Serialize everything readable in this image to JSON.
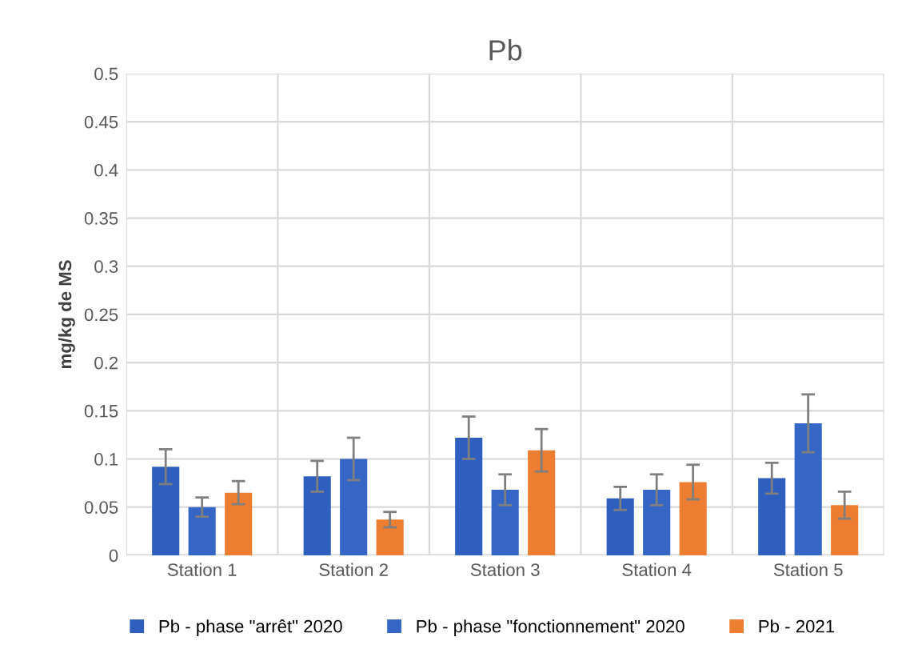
{
  "chart_data": {
    "type": "bar",
    "title": "Pb",
    "ylabel": "mg/kg de MS",
    "categories": [
      "Station 1",
      "Station 2",
      "Station 3",
      "Station 4",
      "Station 5"
    ],
    "series": [
      {
        "name": "Pb - phase \"arrêt\" 2020",
        "color": "#2e5fbf",
        "values": [
          0.092,
          0.082,
          0.122,
          0.059,
          0.08
        ],
        "errors": [
          0.018,
          0.016,
          0.022,
          0.012,
          0.016
        ]
      },
      {
        "name": "Pb - phase \"fonctionnement\" 2020",
        "color": "#3566c6",
        "values": [
          0.05,
          0.1,
          0.068,
          0.068,
          0.137
        ],
        "errors": [
          0.01,
          0.022,
          0.016,
          0.016,
          0.03
        ]
      },
      {
        "name": "Pb - 2021",
        "color": "#ed7d31",
        "values": [
          0.065,
          0.037,
          0.109,
          0.076,
          0.052
        ],
        "errors": [
          0.012,
          0.008,
          0.022,
          0.018,
          0.014
        ]
      }
    ],
    "ylim": [
      0,
      0.5
    ],
    "yticks": [
      0,
      0.05,
      0.1,
      0.15,
      0.2,
      0.25,
      0.3,
      0.35,
      0.4,
      0.45,
      0.5
    ],
    "grid": true,
    "legend": "bottom"
  }
}
